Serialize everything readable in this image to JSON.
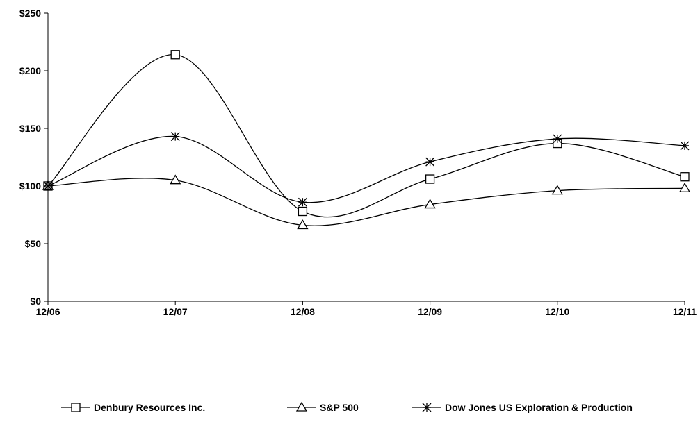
{
  "chart_data": {
    "type": "line",
    "title": "",
    "xlabel": "",
    "ylabel": "",
    "categories": [
      "12/06",
      "12/07",
      "12/08",
      "12/09",
      "12/10",
      "12/11"
    ],
    "y_ticks": [
      "$0",
      "$50",
      "$100",
      "$150",
      "$200",
      "$250"
    ],
    "ylim": [
      0,
      250
    ],
    "grid": false,
    "smooth": true,
    "legend_position": "bottom",
    "series": [
      {
        "name": "Denbury Resources Inc.",
        "marker": "square",
        "values": [
          100,
          214,
          78,
          106,
          137,
          108
        ]
      },
      {
        "name": "S&P 500",
        "marker": "triangle",
        "values": [
          100,
          105,
          66,
          84,
          96,
          98
        ]
      },
      {
        "name": "Dow Jones US Exploration & Production",
        "marker": "asterisk",
        "values": [
          100,
          143,
          86,
          121,
          141,
          135
        ]
      }
    ],
    "colors": {
      "line": "#000000",
      "background": "#ffffff"
    }
  }
}
